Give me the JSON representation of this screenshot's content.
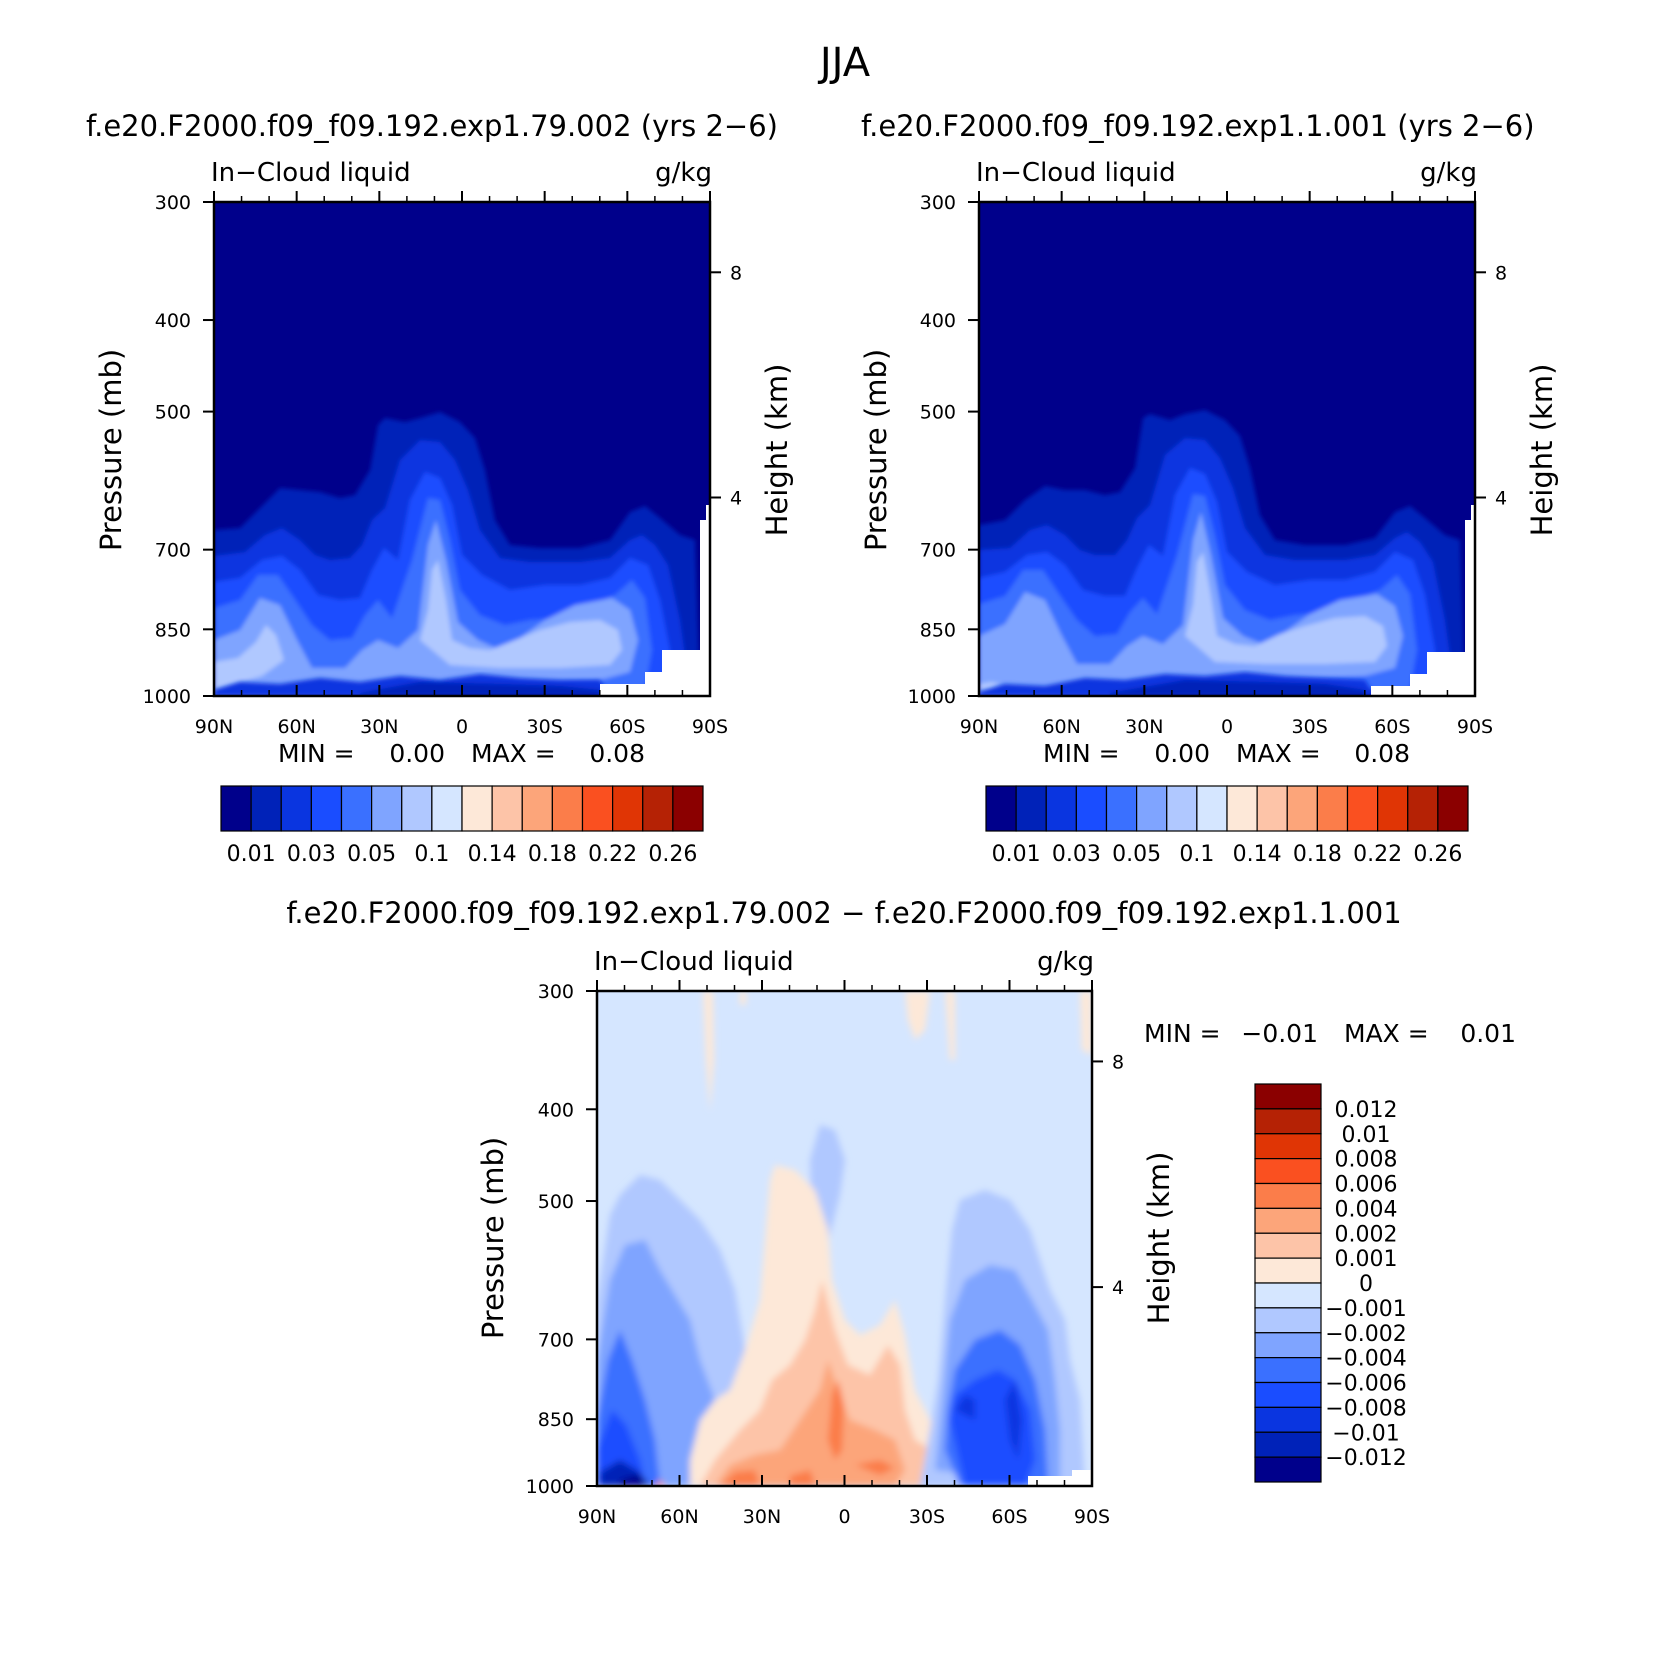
{
  "figure_title": "JJA",
  "panels": {
    "left_title": "f.e20.F2000.f09_f09.192.exp1.79.002 (yrs 2−6)",
    "right_title": "f.e20.F2000.f09_f09.192.exp1.1.001 (yrs 2−6)",
    "diff_title": "f.e20.F2000.f09_f09.192.exp1.79.002 − f.e20.F2000.f09_f09.192.exp1.1.001"
  },
  "chart_data": [
    {
      "type": "heatmap",
      "panel": "exp1.79.002",
      "title": "f.e20.F2000.f09_f09.192.exp1.79.002 (yrs 2−6)",
      "subtitle_left": "In−Cloud liquid",
      "subtitle_right": "g/kg",
      "ylabel": "Pressure (mb)",
      "ylabel_right": "Height (km)",
      "x_ticks": [
        "90N",
        "60N",
        "30N",
        "0",
        "30S",
        "60S",
        "90S"
      ],
      "y_ticks": [
        "300",
        "400",
        "500",
        "700",
        "850",
        "1000"
      ],
      "y_right_ticks": [
        "8",
        "4"
      ],
      "min_label": "MIN =",
      "min_value": "0.00",
      "max_label": "MAX =",
      "max_value": "0.08",
      "colorbar_labels": [
        "0.01",
        "0.03",
        "0.05",
        "0.1",
        "0.14",
        "0.18",
        "0.22",
        "0.26"
      ]
    },
    {
      "type": "heatmap",
      "panel": "exp1.1.001",
      "title": "f.e20.F2000.f09_f09.192.exp1.1.001 (yrs 2−6)",
      "subtitle_left": "In−Cloud liquid",
      "subtitle_right": "g/kg",
      "ylabel": "Pressure (mb)",
      "ylabel_right": "Height (km)",
      "x_ticks": [
        "90N",
        "60N",
        "30N",
        "0",
        "30S",
        "60S",
        "90S"
      ],
      "y_ticks": [
        "300",
        "400",
        "500",
        "700",
        "850",
        "1000"
      ],
      "y_right_ticks": [
        "8",
        "4"
      ],
      "min_label": "MIN =",
      "min_value": "0.00",
      "max_label": "MAX =",
      "max_value": "0.08",
      "colorbar_labels": [
        "0.01",
        "0.03",
        "0.05",
        "0.1",
        "0.14",
        "0.18",
        "0.22",
        "0.26"
      ]
    },
    {
      "type": "heatmap",
      "panel": "difference",
      "title": "f.e20.F2000.f09_f09.192.exp1.79.002 − f.e20.F2000.f09_f09.192.exp1.1.001",
      "subtitle_left": "In−Cloud liquid",
      "subtitle_right": "g/kg",
      "ylabel": "Pressure (mb)",
      "ylabel_right": "Height (km)",
      "x_ticks": [
        "90N",
        "60N",
        "30N",
        "0",
        "30S",
        "60S",
        "90S"
      ],
      "y_ticks": [
        "300",
        "400",
        "500",
        "700",
        "850",
        "1000"
      ],
      "y_right_ticks": [
        "8",
        "4"
      ],
      "min_label": "MIN =",
      "min_value": "−0.01",
      "max_label": "MAX =",
      "max_value": "0.01",
      "colorbar_labels": [
        "0.012",
        "0.01",
        "0.008",
        "0.006",
        "0.004",
        "0.002",
        "0.001",
        "0",
        "−0.001",
        "−0.002",
        "−0.004",
        "−0.006",
        "−0.008",
        "−0.01",
        "−0.012"
      ]
    }
  ],
  "colors": {
    "abs_palette": [
      "#00008b",
      "#0022b8",
      "#0a35e0",
      "#1a4dff",
      "#3a70ff",
      "#7fa4ff",
      "#b0c8ff",
      "#d5e6ff",
      "#fde8d8",
      "#fdc4a8",
      "#fca57a",
      "#fb7d4a",
      "#fa5020",
      "#e03505",
      "#b52205",
      "#8b0000"
    ],
    "diff_palette": [
      "#8b0000",
      "#b52205",
      "#e03505",
      "#fa5020",
      "#fb7d4a",
      "#fca57a",
      "#fdc4a8",
      "#fde8d8",
      "#d5e6ff",
      "#b0c8ff",
      "#7fa4ff",
      "#3a70ff",
      "#1a4dff",
      "#0a35e0",
      "#0022b8",
      "#00008b"
    ]
  }
}
